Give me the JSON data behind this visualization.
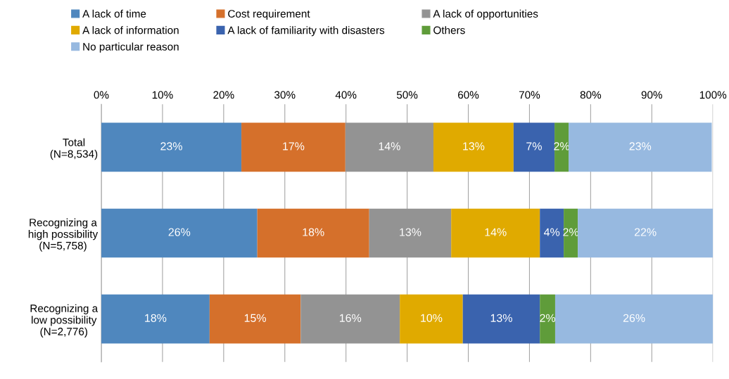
{
  "chart_data": {
    "type": "bar",
    "orientation": "horizontal",
    "stacked": true,
    "categories": [
      "Total\n(N=8,534)",
      "Recognizing a\nhigh possibility\n(N=5,758)",
      "Recognizing a\nlow possibility\n(N=2,776)"
    ],
    "series": [
      {
        "name": "A lack of time",
        "color": "#4f87be",
        "values": [
          22.9,
          25.5,
          17.7
        ],
        "value_labels": [
          "23%",
          "26%",
          "18%"
        ]
      },
      {
        "name": "Cost requirement",
        "color": "#d5702b",
        "values": [
          17.0,
          18.3,
          14.9
        ],
        "value_labels": [
          "17%",
          "18%",
          "15%"
        ]
      },
      {
        "name": "A lack of opportunities",
        "color": "#939393",
        "values": [
          14.4,
          13.4,
          16.2
        ],
        "value_labels": [
          "14%",
          "13%",
          "16%"
        ]
      },
      {
        "name": "A lack of information",
        "color": "#e0aa00",
        "values": [
          13.1,
          14.5,
          10.3
        ],
        "value_labels": [
          "13%",
          "14%",
          "10%"
        ]
      },
      {
        "name": "A lack of familiarity with disasters",
        "color": "#3a63ae",
        "values": [
          6.7,
          3.9,
          12.6
        ],
        "value_labels": [
          "7%",
          "4%",
          "13%"
        ]
      },
      {
        "name": "Others",
        "color": "#5f9c3a",
        "values": [
          2.3,
          2.3,
          2.5
        ],
        "value_labels": [
          "2%",
          "2%",
          "2%"
        ]
      },
      {
        "name": "No particular reason",
        "color": "#97b9e0",
        "values": [
          23.4,
          22.1,
          25.8
        ],
        "value_labels": [
          "23%",
          "22%",
          "26%"
        ]
      }
    ],
    "xlim": [
      0,
      100
    ],
    "xticks": [
      {
        "value": 0,
        "label": "0%"
      },
      {
        "value": 10,
        "label": "10%"
      },
      {
        "value": 20,
        "label": "20%"
      },
      {
        "value": 30,
        "label": "30%"
      },
      {
        "value": 40,
        "label": "40%"
      },
      {
        "value": 50,
        "label": "50%"
      },
      {
        "value": 60,
        "label": "60%"
      },
      {
        "value": 70,
        "label": "70%"
      },
      {
        "value": 80,
        "label": "80%"
      },
      {
        "value": 90,
        "label": "90%"
      },
      {
        "value": 100,
        "label": "100%"
      }
    ],
    "grid": "x",
    "legend": "top"
  }
}
